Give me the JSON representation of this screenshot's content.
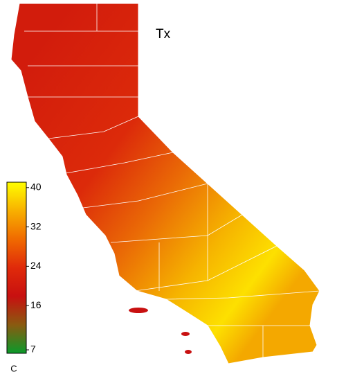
{
  "map": {
    "title": "Tx",
    "colorbar": {
      "unit": "C",
      "ticks": [
        40,
        32,
        24,
        16,
        7
      ],
      "range": [
        6.3,
        41.1
      ],
      "colors": [
        "#0a9a2a",
        "#8a5a10",
        "#c81010",
        "#e02a0a",
        "#f06a00",
        "#f8b000",
        "#ffff00"
      ]
    }
  }
}
